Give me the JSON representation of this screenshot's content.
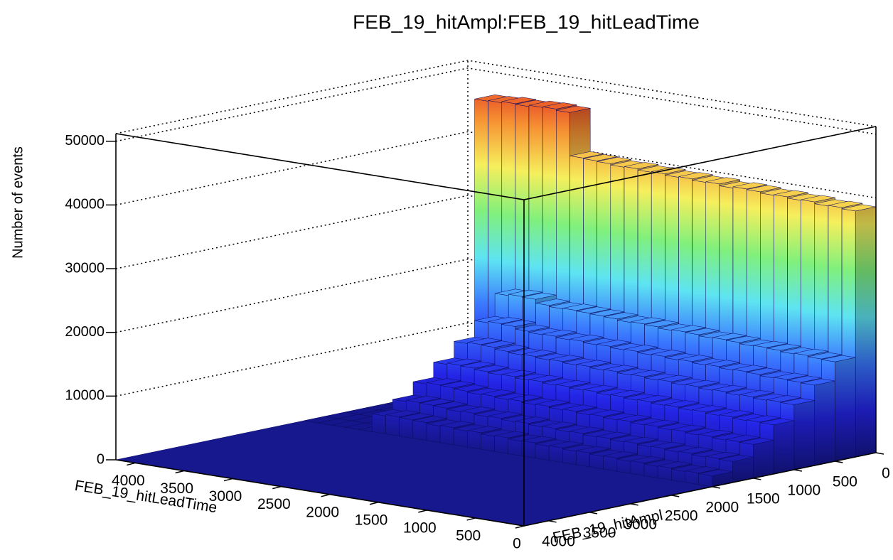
{
  "chart_data": {
    "type": "lego",
    "title": "FEB_19_hitAmpl:FEB_19_hitLeadTime",
    "z_label": "Number of events",
    "x_label": "FEB_19_hitLeadTime",
    "y_label": "FEB_19_hitAmpl",
    "xlim": [
      0,
      4200
    ],
    "ylim": [
      0,
      4300
    ],
    "zlim": [
      0,
      51200
    ],
    "xticks": [
      0,
      500,
      1000,
      1500,
      2000,
      2500,
      3000,
      3500,
      4000
    ],
    "yticks": [
      0,
      500,
      1000,
      1500,
      2000,
      2500,
      3000,
      3500,
      4000
    ],
    "zticks": [
      0,
      10000,
      20000,
      30000,
      40000,
      50000
    ],
    "grid": true,
    "palette": [
      "#16168c",
      "#2424e6",
      "#3a78ff",
      "#5ee4f2",
      "#80f07c",
      "#f6ef5c",
      "#f69032",
      "#dc2222"
    ],
    "x_bins": [
      0,
      140,
      280,
      420,
      560,
      700,
      840,
      980,
      1120,
      1260,
      1400,
      1540,
      1680,
      1820,
      1960,
      2100,
      2240,
      2380,
      2520,
      2660,
      2800,
      2940,
      3080,
      3220,
      3360,
      3500,
      3640,
      3780,
      3920,
      4060,
      4200
    ],
    "y_bins": [
      0,
      250,
      500,
      750,
      1000,
      1250,
      1500,
      1750,
      2000
    ],
    "values": [
      [
        38600,
        38800,
        38700,
        39000,
        38900,
        39100,
        39000,
        39200,
        39300,
        39100,
        39400,
        39300,
        39500,
        39400,
        39600,
        39500,
        39700,
        39600,
        39800,
        39900,
        40000,
        46800,
        47000,
        46900,
        46700,
        46800,
        46600,
        46500,
        0,
        0
      ],
      [
        15600,
        15700,
        15900,
        15800,
        16000,
        16100,
        16000,
        16200,
        16300,
        16200,
        16400,
        16500,
        16400,
        16600,
        16700,
        16600,
        16800,
        16900,
        17000,
        17100,
        17000,
        17200,
        17800,
        17900,
        17700,
        0,
        0,
        0,
        0,
        0
      ],
      [
        12600,
        12700,
        12800,
        12700,
        12900,
        13000,
        12900,
        13100,
        13000,
        13200,
        13100,
        13300,
        13200,
        13400,
        13300,
        13500,
        13400,
        13600,
        13500,
        13700,
        13600,
        13800,
        14200,
        14300,
        14100,
        0,
        0,
        0,
        0,
        0
      ],
      [
        10200,
        10300,
        10200,
        10400,
        10300,
        10500,
        10400,
        10600,
        10500,
        10700,
        10600,
        10800,
        10700,
        10900,
        10800,
        11000,
        10900,
        11100,
        11000,
        11200,
        11100,
        11300,
        11600,
        11700,
        11500,
        0,
        0,
        0,
        0,
        0
      ],
      [
        7700,
        7800,
        7700,
        7900,
        7800,
        8000,
        7900,
        8100,
        8000,
        8200,
        8100,
        8300,
        8200,
        8400,
        8300,
        8500,
        8400,
        8600,
        8500,
        8700,
        8600,
        8800,
        9000,
        9100,
        8900,
        0,
        0,
        0,
        0,
        0
      ],
      [
        5300,
        5400,
        5300,
        5500,
        5400,
        5600,
        5500,
        5700,
        5600,
        5800,
        5700,
        5900,
        5800,
        6000,
        5900,
        6100,
        6000,
        6200,
        6100,
        6300,
        6200,
        6400,
        6600,
        6700,
        6500,
        0,
        0,
        0,
        0,
        0
      ],
      [
        3300,
        3400,
        3300,
        3500,
        3400,
        3600,
        3500,
        3700,
        3600,
        3800,
        3700,
        3900,
        3800,
        4000,
        3900,
        4100,
        4000,
        4200,
        4100,
        4300,
        4200,
        4400,
        4500,
        4600,
        4400,
        0,
        0,
        0,
        0,
        0
      ],
      [
        1700,
        1800,
        1700,
        1900,
        1800,
        2000,
        1900,
        2100,
        2000,
        2200,
        2100,
        2300,
        2200,
        2400,
        2300,
        2500,
        2400,
        2600,
        2500,
        2700,
        2600,
        2800,
        2900,
        3000,
        2800,
        0,
        0,
        0,
        0,
        0
      ]
    ]
  }
}
